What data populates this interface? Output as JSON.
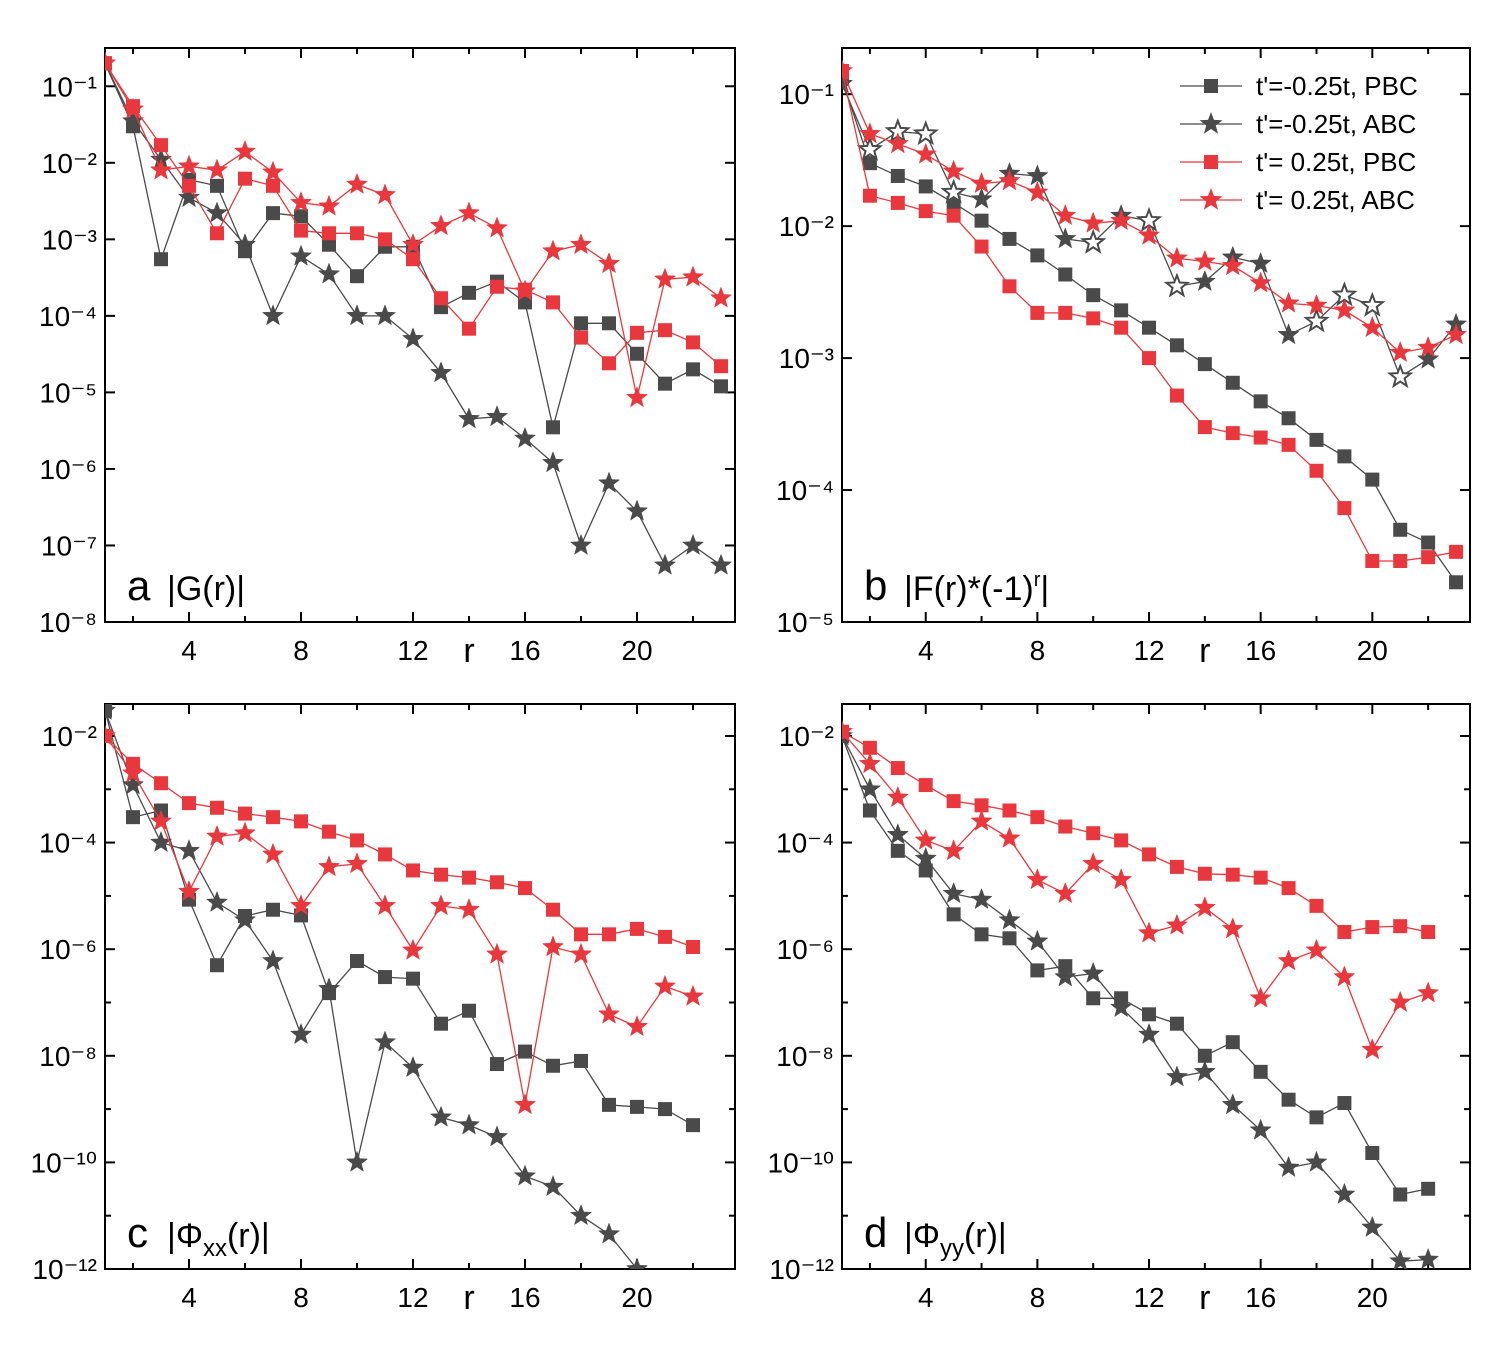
{
  "figure": {
    "legend": {
      "entries": [
        {
          "label": "t'=-0.25t, PBC",
          "color": "#4a4a4a",
          "marker": "square"
        },
        {
          "label": "t'=-0.25t, ABC",
          "color": "#4a4a4a",
          "marker": "star"
        },
        {
          "label": "t'= 0.25t, PBC",
          "color": "#e8383d",
          "marker": "square"
        },
        {
          "label": "t'= 0.25t, ABC",
          "color": "#e8383d",
          "marker": "star"
        }
      ]
    },
    "colors": {
      "dark": "#4a4a4a",
      "red": "#e8383d"
    }
  },
  "chart_data": [
    {
      "id": "a",
      "type": "line",
      "panel_letter": "a",
      "title": "|G(r)|",
      "xlabel": "r",
      "ylabel": "",
      "yscale": "log",
      "xlim": [
        1,
        23.5
      ],
      "ylim_exp": [
        -8,
        -0.5
      ],
      "xticks": [
        "4",
        "8",
        "12",
        "16",
        "20"
      ],
      "xtick_values": [
        4,
        8,
        12,
        16,
        20
      ],
      "ytick_exps": [
        -1,
        -2,
        -3,
        -4,
        -5,
        -6,
        -7,
        -8
      ],
      "ytick_labels": [
        "10⁻¹",
        "10⁻²",
        "10⁻³",
        "10⁻⁴",
        "10⁻⁵",
        "10⁻⁶",
        "10⁻⁷",
        "10⁻⁸"
      ],
      "series": [
        {
          "name": "t'=-0.25t, PBC",
          "color": "#4a4a4a",
          "marker": "square",
          "x": [
            1,
            2,
            3,
            4,
            5,
            6,
            7,
            8,
            9,
            10,
            11,
            12,
            13,
            14,
            15,
            16,
            17,
            18,
            19,
            20,
            21,
            22,
            23
          ],
          "y": [
            0.2,
            0.03,
            0.00055,
            0.006,
            0.005,
            0.0007,
            0.0022,
            0.002,
            0.00085,
            0.00033,
            0.0008,
            0.0008,
            0.00013,
            0.0002,
            0.00028,
            0.00015,
            3.5e-06,
            8e-05,
            8e-05,
            3.2e-05,
            1.3e-05,
            2e-05,
            1.2e-05
          ]
        },
        {
          "name": "t'=-0.25t, ABC",
          "color": "#4a4a4a",
          "marker": "star",
          "x": [
            1,
            2,
            3,
            4,
            5,
            6,
            7,
            8,
            9,
            10,
            11,
            12,
            13,
            14,
            15,
            16,
            17,
            18,
            19,
            20,
            21,
            22,
            23
          ],
          "y": [
            0.2,
            0.035,
            0.011,
            0.0035,
            0.0022,
            0.00085,
            0.0001,
            0.0006,
            0.00035,
            0.0001,
            0.0001,
            5e-05,
            1.8e-05,
            4.5e-06,
            4.8e-06,
            2.5e-06,
            1.2e-06,
            1e-07,
            6.5e-07,
            2.8e-07,
            5.5e-08,
            1e-07,
            5.5e-08
          ]
        },
        {
          "name": "t'= 0.25t, PBC",
          "color": "#e8383d",
          "marker": "square",
          "x": [
            1,
            2,
            3,
            4,
            5,
            6,
            7,
            8,
            9,
            10,
            11,
            12,
            13,
            14,
            15,
            16,
            17,
            18,
            19,
            20,
            21,
            22,
            23
          ],
          "y": [
            0.2,
            0.055,
            0.017,
            0.005,
            0.0012,
            0.0062,
            0.005,
            0.0013,
            0.0012,
            0.0012,
            0.001,
            0.00055,
            0.00017,
            6.8e-05,
            0.00024,
            0.00022,
            0.00015,
            5.2e-05,
            2.4e-05,
            6e-05,
            6.5e-05,
            4.5e-05,
            2.2e-05
          ]
        },
        {
          "name": "t'= 0.25t, ABC",
          "color": "#e8383d",
          "marker": "star",
          "x": [
            1,
            2,
            3,
            4,
            5,
            6,
            7,
            8,
            9,
            10,
            11,
            12,
            13,
            14,
            15,
            16,
            17,
            18,
            19,
            20,
            21,
            22,
            23
          ],
          "y": [
            0.2,
            0.05,
            0.008,
            0.009,
            0.008,
            0.014,
            0.0075,
            0.003,
            0.0027,
            0.0052,
            0.0038,
            0.00085,
            0.0015,
            0.0022,
            0.0014,
            0.00021,
            0.0007,
            0.00085,
            0.00048,
            8.5e-06,
            0.0003,
            0.00032,
            0.00017
          ]
        }
      ]
    },
    {
      "id": "b",
      "type": "line",
      "panel_letter": "b",
      "title": "|F(r)*(-1)",
      "title_sup": "r",
      "title_end": "|",
      "xlabel": "r",
      "ylabel": "",
      "yscale": "log",
      "xlim": [
        1,
        23.5
      ],
      "ylim_exp": [
        -5,
        -0.65
      ],
      "xticks": [
        "4",
        "8",
        "12",
        "16",
        "20"
      ],
      "xtick_values": [
        4,
        8,
        12,
        16,
        20
      ],
      "ytick_exps": [
        -1,
        -2,
        -3,
        -4,
        -5
      ],
      "ytick_labels": [
        "10⁻¹",
        "10⁻²",
        "10⁻³",
        "10⁻⁴",
        "10⁻⁵"
      ],
      "series": [
        {
          "name": "t'=-0.25t, PBC",
          "color": "#4a4a4a",
          "marker": "square",
          "x": [
            1,
            2,
            3,
            4,
            5,
            6,
            7,
            8,
            9,
            10,
            11,
            12,
            13,
            14,
            15,
            16,
            17,
            18,
            19,
            20,
            21,
            22,
            23
          ],
          "y": [
            0.13,
            0.03,
            0.024,
            0.02,
            0.015,
            0.011,
            0.008,
            0.006,
            0.0043,
            0.003,
            0.0023,
            0.0017,
            0.00125,
            0.0009,
            0.00065,
            0.00047,
            0.00035,
            0.00024,
            0.00018,
            0.00012,
            5e-05,
            4e-05,
            2e-05
          ]
        },
        {
          "name": "t'=-0.25t, ABC",
          "color": "#4a4a4a",
          "marker": "star",
          "x": [
            1,
            2,
            3,
            4,
            5,
            6,
            7,
            8,
            9,
            10,
            11,
            12,
            13,
            14,
            15,
            16,
            17,
            18,
            19,
            20,
            21,
            22,
            23
          ],
          "y": [
            0.12,
            0.038,
            0.052,
            0.05,
            0.018,
            0.016,
            0.025,
            0.024,
            0.008,
            0.0075,
            0.012,
            0.011,
            0.0035,
            0.0038,
            0.0058,
            0.0052,
            0.0015,
            0.0019,
            0.003,
            0.0025,
            0.00072,
            0.00098,
            0.0018
          ],
          "hollow": [
            false,
            true,
            true,
            true,
            true,
            false,
            false,
            false,
            false,
            true,
            false,
            true,
            true,
            false,
            false,
            false,
            false,
            true,
            true,
            true,
            true,
            false,
            false
          ]
        },
        {
          "name": "t'= 0.25t, PBC",
          "color": "#e8383d",
          "marker": "square",
          "x": [
            1,
            2,
            3,
            4,
            5,
            6,
            7,
            8,
            9,
            10,
            11,
            12,
            13,
            14,
            15,
            16,
            17,
            18,
            19,
            20,
            21,
            22,
            23
          ],
          "y": [
            0.15,
            0.017,
            0.015,
            0.013,
            0.012,
            0.007,
            0.0035,
            0.0022,
            0.0022,
            0.002,
            0.0017,
            0.001,
            0.00052,
            0.0003,
            0.00027,
            0.00025,
            0.00022,
            0.00014,
            7.3e-05,
            2.9e-05,
            2.9e-05,
            3.1e-05,
            3.4e-05
          ]
        },
        {
          "name": "t'= 0.25t, ABC",
          "color": "#e8383d",
          "marker": "star",
          "x": [
            1,
            2,
            3,
            4,
            5,
            6,
            7,
            8,
            9,
            10,
            11,
            12,
            13,
            14,
            15,
            16,
            17,
            18,
            19,
            20,
            21,
            22,
            23
          ],
          "y": [
            0.15,
            0.05,
            0.042,
            0.035,
            0.026,
            0.021,
            0.022,
            0.018,
            0.012,
            0.0105,
            0.011,
            0.0085,
            0.0057,
            0.0054,
            0.005,
            0.0037,
            0.0026,
            0.0025,
            0.0023,
            0.0017,
            0.0011,
            0.0012,
            0.0015
          ]
        }
      ]
    },
    {
      "id": "c",
      "type": "line",
      "panel_letter": "c",
      "title": "|Φ",
      "title_sub": "xx",
      "title_end": "(r)|",
      "xlabel": "r",
      "ylabel": "",
      "yscale": "log",
      "xlim": [
        1,
        23.5
      ],
      "ylim_exp": [
        -12,
        -1.4
      ],
      "xticks": [
        "4",
        "8",
        "12",
        "16",
        "20"
      ],
      "xtick_values": [
        4,
        8,
        12,
        16,
        20
      ],
      "ytick_exps": [
        -2,
        -4,
        -6,
        -8,
        -10,
        -12
      ],
      "ytick_labels": [
        "10⁻²",
        "10⁻⁴",
        "10⁻⁶",
        "10⁻⁸",
        "10⁻¹⁰",
        "10⁻¹²"
      ],
      "series": [
        {
          "name": "t'=-0.25t, PBC",
          "color": "#4a4a4a",
          "marker": "square",
          "x": [
            1,
            2,
            3,
            4,
            5,
            6,
            7,
            8,
            9,
            10,
            11,
            12,
            13,
            14,
            15,
            16,
            17,
            18,
            19,
            20,
            21,
            22
          ],
          "y": [
            0.03,
            0.0003,
            0.0004,
            8.5e-06,
            5e-07,
            4.2e-06,
            5.5e-06,
            4.3e-06,
            1.5e-07,
            6e-07,
            3e-07,
            2.8e-07,
            4e-08,
            7e-08,
            7e-09,
            1.2e-08,
            6.5e-09,
            8e-09,
            1.2e-09,
            1.1e-09,
            1e-09,
            5e-10
          ]
        },
        {
          "name": "t'=-0.25t, ABC",
          "color": "#4a4a4a",
          "marker": "star",
          "x": [
            1,
            2,
            3,
            4,
            5,
            6,
            7,
            8,
            9,
            10,
            11,
            12,
            13,
            14,
            15,
            16,
            17,
            18,
            19,
            20
          ],
          "y": [
            0.03,
            0.0012,
            0.0001,
            7e-05,
            7.5e-06,
            3.5e-06,
            6e-07,
            2.5e-08,
            1.8e-07,
            1e-10,
            1.8e-08,
            6e-09,
            7e-10,
            5e-10,
            3e-10,
            5.5e-11,
            3.5e-11,
            1e-11,
            4.5e-12,
            1e-12
          ]
        },
        {
          "name": "t'= 0.25t, PBC",
          "color": "#e8383d",
          "marker": "square",
          "x": [
            1,
            2,
            3,
            4,
            5,
            6,
            7,
            8,
            9,
            10,
            11,
            12,
            13,
            14,
            15,
            16,
            17,
            18,
            19,
            20,
            21,
            22
          ],
          "y": [
            0.01,
            0.003,
            0.0013,
            0.00055,
            0.00045,
            0.00035,
            0.0003,
            0.00025,
            0.00016,
            0.00011,
            6e-05,
            3e-05,
            2.5e-05,
            2.2e-05,
            1.8e-05,
            1.4e-05,
            5.5e-06,
            1.9e-06,
            1.9e-06,
            2.4e-06,
            1.7e-06,
            1.1e-06
          ]
        },
        {
          "name": "t'= 0.25t, ABC",
          "color": "#e8383d",
          "marker": "star",
          "x": [
            1,
            2,
            3,
            4,
            5,
            6,
            7,
            8,
            9,
            10,
            11,
            12,
            13,
            14,
            15,
            16,
            17,
            18,
            19,
            20,
            21,
            22
          ],
          "y": [
            0.01,
            0.002,
            0.00025,
            1.2e-05,
            0.00013,
            0.00015,
            6e-05,
            6.5e-06,
            3.5e-05,
            4e-05,
            6.5e-06,
            9.5e-07,
            6.5e-06,
            5.5e-06,
            8e-07,
            1.2e-09,
            1.1e-06,
            8e-07,
            6e-08,
            3.5e-08,
            2e-07,
            1.3e-07
          ]
        }
      ]
    },
    {
      "id": "d",
      "type": "line",
      "panel_letter": "d",
      "title": "|Φ",
      "title_sub": "yy",
      "title_end": "(r)|",
      "xlabel": "r",
      "ylabel": "",
      "yscale": "log",
      "xlim": [
        1,
        23.5
      ],
      "ylim_exp": [
        -12,
        -1.4
      ],
      "xticks": [
        "4",
        "8",
        "12",
        "16",
        "20"
      ],
      "xtick_values": [
        4,
        8,
        12,
        16,
        20
      ],
      "ytick_exps": [
        -2,
        -4,
        -6,
        -8,
        -10,
        -12
      ],
      "ytick_labels": [
        "10⁻²",
        "10⁻⁴",
        "10⁻⁶",
        "10⁻⁸",
        "10⁻¹⁰",
        "10⁻¹²"
      ],
      "series": [
        {
          "name": "t'=-0.25t, PBC",
          "color": "#4a4a4a",
          "marker": "square",
          "x": [
            1,
            2,
            3,
            4,
            5,
            6,
            7,
            8,
            9,
            10,
            11,
            12,
            13,
            14,
            15,
            16,
            17,
            18,
            19,
            20,
            21,
            22
          ],
          "y": [
            0.01,
            0.0004,
            7e-05,
            3e-05,
            4.5e-06,
            1.9e-06,
            1.6e-06,
            4e-07,
            4.8e-07,
            1.2e-07,
            1.2e-07,
            6e-08,
            4e-08,
            1e-08,
            1.8e-08,
            5e-09,
            1.5e-09,
            7e-10,
            1.3e-09,
            1.5e-10,
            2.5e-11,
            3.2e-11
          ]
        },
        {
          "name": "t'=-0.25t, ABC",
          "color": "#4a4a4a",
          "marker": "star",
          "x": [
            1,
            2,
            3,
            4,
            5,
            6,
            7,
            8,
            9,
            10,
            11,
            12,
            13,
            14,
            15,
            16,
            17,
            18,
            19,
            20,
            21,
            22
          ],
          "y": [
            0.01,
            0.001,
            0.00014,
            5e-05,
            1.1e-05,
            8.5e-06,
            3.5e-06,
            1.4e-06,
            3e-07,
            3.5e-07,
            8e-08,
            2.5e-08,
            4e-09,
            5e-09,
            1.2e-09,
            4e-10,
            8e-11,
            1e-10,
            2.5e-11,
            6e-12,
            1.4e-12,
            1.5e-12
          ]
        },
        {
          "name": "t'= 0.25t, PBC",
          "color": "#e8383d",
          "marker": "square",
          "x": [
            1,
            2,
            3,
            4,
            5,
            6,
            7,
            8,
            9,
            10,
            11,
            12,
            13,
            14,
            15,
            16,
            17,
            18,
            19,
            20,
            21,
            22
          ],
          "y": [
            0.012,
            0.006,
            0.0025,
            0.0012,
            0.0006,
            0.0005,
            0.0004,
            0.0003,
            0.0002,
            0.00015,
            0.00011,
            6e-05,
            3.5e-05,
            2.6e-05,
            2.5e-05,
            2.2e-05,
            1.4e-05,
            6.5e-06,
            2.1e-06,
            2.6e-06,
            2.7e-06,
            2.1e-06
          ]
        },
        {
          "name": "t'= 0.25t, ABC",
          "color": "#e8383d",
          "marker": "star",
          "x": [
            1,
            2,
            3,
            4,
            5,
            6,
            7,
            8,
            9,
            10,
            11,
            12,
            13,
            14,
            15,
            16,
            17,
            18,
            19,
            20,
            21,
            22
          ],
          "y": [
            0.012,
            0.003,
            0.0007,
            0.00011,
            7e-05,
            0.00025,
            0.00012,
            2e-05,
            1.1e-05,
            4e-05,
            2e-05,
            2e-06,
            2.8e-06,
            6e-06,
            2.4e-06,
            1.2e-07,
            6e-07,
            9.5e-07,
            3e-07,
            1.3e-08,
            1e-07,
            1.5e-07
          ]
        }
      ]
    }
  ]
}
